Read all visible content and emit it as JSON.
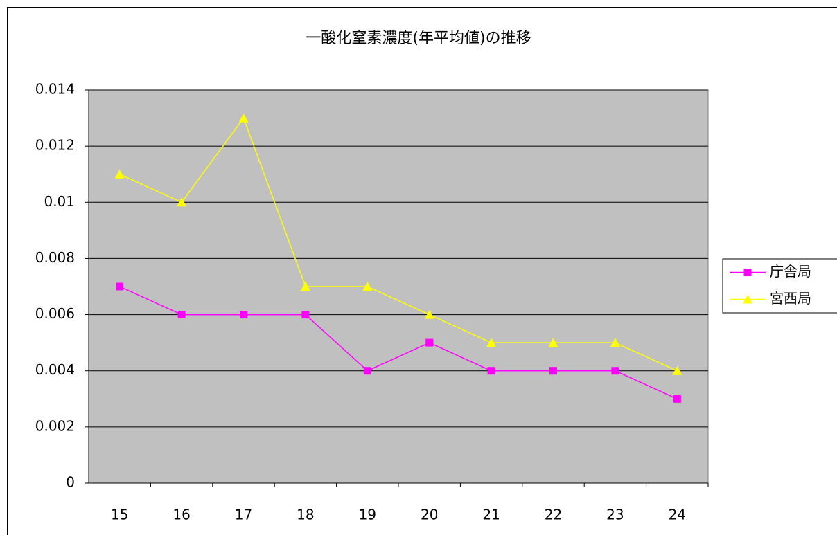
{
  "chart_data": {
    "type": "line",
    "title": "一酸化窒素濃度(年平均値)の推移",
    "categories": [
      "15",
      "16",
      "17",
      "18",
      "19",
      "20",
      "21",
      "22",
      "23",
      "24"
    ],
    "series": [
      {
        "name": "庁舎局",
        "color": "#ff00ff",
        "marker": "square",
        "values": [
          0.007,
          0.006,
          0.006,
          0.006,
          0.004,
          0.005,
          0.004,
          0.004,
          0.004,
          0.003
        ]
      },
      {
        "name": "宮西局",
        "color": "#ffff00",
        "marker": "triangle",
        "values": [
          0.011,
          0.01,
          0.013,
          0.007,
          0.007,
          0.006,
          0.005,
          0.005,
          0.005,
          0.004
        ]
      }
    ],
    "ylim": [
      0,
      0.014
    ],
    "yticks": [
      0,
      0.002,
      0.004,
      0.006,
      0.008,
      0.01,
      0.012,
      0.014
    ],
    "grid": true,
    "legend": "right",
    "plot_background": "#c0c0c0"
  }
}
